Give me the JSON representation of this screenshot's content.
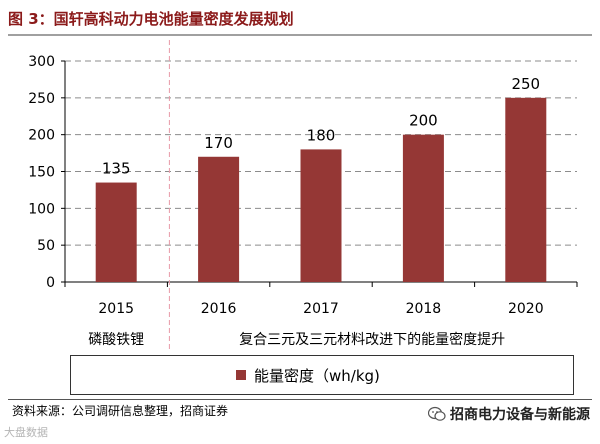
{
  "title": "图 3：国轩高科动力电池能量密度发展规划",
  "chart_data": {
    "type": "bar",
    "categories": [
      "2015",
      "2016",
      "2017",
      "2018",
      "2020"
    ],
    "series": [
      {
        "name": "能量密度（wh/kg)",
        "values": [
          135,
          170,
          180,
          200,
          250
        ],
        "color": "#953735"
      }
    ],
    "ylim": [
      0,
      300
    ],
    "yticks": [
      0,
      50,
      100,
      150,
      200,
      250,
      300
    ],
    "grid": true,
    "legend_position": "bottom",
    "groups": [
      {
        "label": "磷酸铁锂",
        "categories": [
          "2015"
        ]
      },
      {
        "label": "复合三元及三元材料改进下的能量密度提升",
        "categories": [
          "2016",
          "2017",
          "2018",
          "2020"
        ]
      }
    ]
  },
  "legend": {
    "label": "能量密度（wh/kg)"
  },
  "footer": {
    "source": "资料来源：公司调研信息整理，招商证券",
    "brand": "招商电力设备与新能源",
    "watermark": "大盘数据"
  }
}
